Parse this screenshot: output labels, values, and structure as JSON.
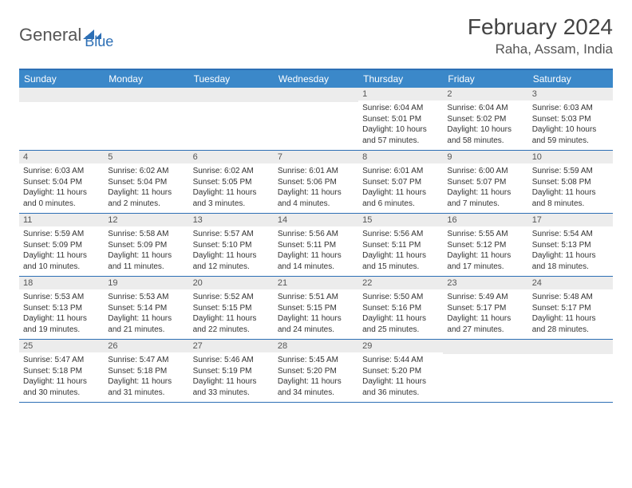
{
  "brand": {
    "part1": "General",
    "part2": "Blue"
  },
  "title": "February 2024",
  "location": "Raha, Assam, India",
  "colors": {
    "header_bg": "#3b88c9",
    "border": "#2d6fb5",
    "numbar_bg": "#ececec",
    "text": "#333333",
    "muted": "#555555"
  },
  "dayNames": [
    "Sunday",
    "Monday",
    "Tuesday",
    "Wednesday",
    "Thursday",
    "Friday",
    "Saturday"
  ],
  "weeks": [
    [
      null,
      null,
      null,
      null,
      {
        "n": "1",
        "sr": "6:04 AM",
        "ss": "5:01 PM",
        "dl": "10 hours and 57 minutes."
      },
      {
        "n": "2",
        "sr": "6:04 AM",
        "ss": "5:02 PM",
        "dl": "10 hours and 58 minutes."
      },
      {
        "n": "3",
        "sr": "6:03 AM",
        "ss": "5:03 PM",
        "dl": "10 hours and 59 minutes."
      }
    ],
    [
      {
        "n": "4",
        "sr": "6:03 AM",
        "ss": "5:04 PM",
        "dl": "11 hours and 0 minutes."
      },
      {
        "n": "5",
        "sr": "6:02 AM",
        "ss": "5:04 PM",
        "dl": "11 hours and 2 minutes."
      },
      {
        "n": "6",
        "sr": "6:02 AM",
        "ss": "5:05 PM",
        "dl": "11 hours and 3 minutes."
      },
      {
        "n": "7",
        "sr": "6:01 AM",
        "ss": "5:06 PM",
        "dl": "11 hours and 4 minutes."
      },
      {
        "n": "8",
        "sr": "6:01 AM",
        "ss": "5:07 PM",
        "dl": "11 hours and 6 minutes."
      },
      {
        "n": "9",
        "sr": "6:00 AM",
        "ss": "5:07 PM",
        "dl": "11 hours and 7 minutes."
      },
      {
        "n": "10",
        "sr": "5:59 AM",
        "ss": "5:08 PM",
        "dl": "11 hours and 8 minutes."
      }
    ],
    [
      {
        "n": "11",
        "sr": "5:59 AM",
        "ss": "5:09 PM",
        "dl": "11 hours and 10 minutes."
      },
      {
        "n": "12",
        "sr": "5:58 AM",
        "ss": "5:09 PM",
        "dl": "11 hours and 11 minutes."
      },
      {
        "n": "13",
        "sr": "5:57 AM",
        "ss": "5:10 PM",
        "dl": "11 hours and 12 minutes."
      },
      {
        "n": "14",
        "sr": "5:56 AM",
        "ss": "5:11 PM",
        "dl": "11 hours and 14 minutes."
      },
      {
        "n": "15",
        "sr": "5:56 AM",
        "ss": "5:11 PM",
        "dl": "11 hours and 15 minutes."
      },
      {
        "n": "16",
        "sr": "5:55 AM",
        "ss": "5:12 PM",
        "dl": "11 hours and 17 minutes."
      },
      {
        "n": "17",
        "sr": "5:54 AM",
        "ss": "5:13 PM",
        "dl": "11 hours and 18 minutes."
      }
    ],
    [
      {
        "n": "18",
        "sr": "5:53 AM",
        "ss": "5:13 PM",
        "dl": "11 hours and 19 minutes."
      },
      {
        "n": "19",
        "sr": "5:53 AM",
        "ss": "5:14 PM",
        "dl": "11 hours and 21 minutes."
      },
      {
        "n": "20",
        "sr": "5:52 AM",
        "ss": "5:15 PM",
        "dl": "11 hours and 22 minutes."
      },
      {
        "n": "21",
        "sr": "5:51 AM",
        "ss": "5:15 PM",
        "dl": "11 hours and 24 minutes."
      },
      {
        "n": "22",
        "sr": "5:50 AM",
        "ss": "5:16 PM",
        "dl": "11 hours and 25 minutes."
      },
      {
        "n": "23",
        "sr": "5:49 AM",
        "ss": "5:17 PM",
        "dl": "11 hours and 27 minutes."
      },
      {
        "n": "24",
        "sr": "5:48 AM",
        "ss": "5:17 PM",
        "dl": "11 hours and 28 minutes."
      }
    ],
    [
      {
        "n": "25",
        "sr": "5:47 AM",
        "ss": "5:18 PM",
        "dl": "11 hours and 30 minutes."
      },
      {
        "n": "26",
        "sr": "5:47 AM",
        "ss": "5:18 PM",
        "dl": "11 hours and 31 minutes."
      },
      {
        "n": "27",
        "sr": "5:46 AM",
        "ss": "5:19 PM",
        "dl": "11 hours and 33 minutes."
      },
      {
        "n": "28",
        "sr": "5:45 AM",
        "ss": "5:20 PM",
        "dl": "11 hours and 34 minutes."
      },
      {
        "n": "29",
        "sr": "5:44 AM",
        "ss": "5:20 PM",
        "dl": "11 hours and 36 minutes."
      },
      null,
      null
    ]
  ],
  "labels": {
    "sunrise": "Sunrise: ",
    "sunset": "Sunset: ",
    "daylight": "Daylight: "
  }
}
